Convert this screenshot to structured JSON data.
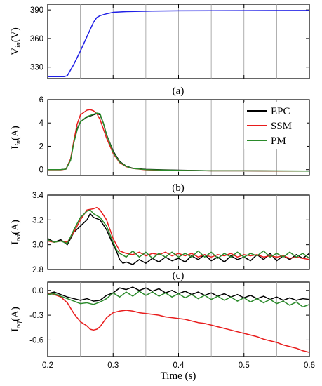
{
  "chart_data": [
    {
      "type": "line",
      "panel_label": "(a)",
      "ylabel_main": "V",
      "ylabel_sub": "in",
      "ylabel_unit": "(V)",
      "xlim": [
        0.2,
        0.6
      ],
      "ylim": [
        318,
        396
      ],
      "yticks": [
        330,
        360,
        390
      ],
      "xticks": [
        0.2,
        0.3,
        0.4,
        0.5,
        0.6
      ],
      "grid": true,
      "series": [
        {
          "color": "#1f1fe6",
          "x": [
            0.2,
            0.225,
            0.23,
            0.24,
            0.25,
            0.26,
            0.27,
            0.275,
            0.28,
            0.29,
            0.3,
            0.32,
            0.36,
            0.4,
            0.5,
            0.6
          ],
          "y": [
            320,
            320,
            321,
            333,
            347,
            362,
            377,
            382,
            384,
            386,
            387.5,
            388.3,
            388.8,
            389.1,
            389.3,
            389.5
          ]
        }
      ]
    },
    {
      "type": "line",
      "panel_label": "(b)",
      "ylabel_main": "I",
      "ylabel_sub": "in",
      "ylabel_unit": "(A)",
      "xlim": [
        0.2,
        0.6
      ],
      "ylim": [
        -0.5,
        6
      ],
      "yticks": [
        0,
        2,
        4,
        6
      ],
      "xticks": [
        0.2,
        0.3,
        0.4,
        0.5,
        0.6
      ],
      "grid": true,
      "legend_position": "top-right",
      "series": [
        {
          "name": "EPC",
          "color": "#000000",
          "x": [
            0.2,
            0.22,
            0.228,
            0.235,
            0.24,
            0.245,
            0.25,
            0.26,
            0.27,
            0.275,
            0.28,
            0.285,
            0.29,
            0.3,
            0.31,
            0.32,
            0.33,
            0.35,
            0.4,
            0.45,
            0.5,
            0.55,
            0.6
          ],
          "y": [
            0.0,
            0.0,
            0.05,
            0.9,
            2.4,
            3.5,
            4.1,
            4.5,
            4.7,
            4.8,
            4.7,
            4.0,
            3.0,
            1.6,
            0.7,
            0.3,
            0.12,
            0.02,
            -0.05,
            -0.1,
            -0.1,
            -0.12,
            -0.12
          ]
        },
        {
          "name": "SSM",
          "color": "#e81c1c",
          "x": [
            0.2,
            0.22,
            0.228,
            0.235,
            0.24,
            0.245,
            0.25,
            0.26,
            0.265,
            0.27,
            0.275,
            0.28,
            0.285,
            0.29,
            0.3,
            0.31,
            0.32,
            0.33,
            0.35,
            0.4,
            0.45,
            0.5,
            0.55,
            0.6
          ],
          "y": [
            -0.02,
            -0.02,
            0.05,
            0.9,
            2.5,
            3.9,
            4.7,
            5.1,
            5.15,
            5.05,
            4.8,
            4.3,
            3.5,
            2.7,
            1.4,
            0.6,
            0.25,
            0.1,
            -0.02,
            -0.08,
            -0.1,
            -0.1,
            -0.12,
            -0.12
          ]
        },
        {
          "name": "PM",
          "color": "#2a8a2a",
          "x": [
            0.2,
            0.22,
            0.228,
            0.235,
            0.24,
            0.245,
            0.25,
            0.26,
            0.27,
            0.275,
            0.28,
            0.285,
            0.29,
            0.3,
            0.31,
            0.32,
            0.33,
            0.35,
            0.4,
            0.45,
            0.5,
            0.55,
            0.6
          ],
          "y": [
            0.0,
            0.0,
            0.05,
            0.8,
            2.3,
            3.4,
            4.1,
            4.55,
            4.75,
            4.85,
            4.8,
            4.0,
            3.0,
            1.5,
            0.65,
            0.28,
            0.1,
            0.0,
            -0.06,
            -0.1,
            -0.1,
            -0.11,
            -0.12
          ]
        }
      ]
    },
    {
      "type": "line",
      "panel_label": "(c)",
      "ylabel_main": "I",
      "ylabel_sub": "od",
      "ylabel_unit": "(A)",
      "xlim": [
        0.2,
        0.6
      ],
      "ylim": [
        2.8,
        3.4
      ],
      "yticks": [
        2.8,
        3.0,
        3.2,
        3.4
      ],
      "xticks": [
        0.2,
        0.3,
        0.4,
        0.5,
        0.6
      ],
      "grid": true,
      "series": [
        {
          "name": "EPC",
          "color": "#000000",
          "x": [
            0.2,
            0.21,
            0.22,
            0.23,
            0.24,
            0.25,
            0.26,
            0.265,
            0.27,
            0.28,
            0.29,
            0.3,
            0.305,
            0.31,
            0.315,
            0.32,
            0.33,
            0.34,
            0.35,
            0.36,
            0.37,
            0.38,
            0.39,
            0.4,
            0.41,
            0.42,
            0.43,
            0.44,
            0.45,
            0.46,
            0.47,
            0.48,
            0.49,
            0.5,
            0.51,
            0.52,
            0.53,
            0.54,
            0.55,
            0.56,
            0.57,
            0.58,
            0.59,
            0.6
          ],
          "y": [
            3.05,
            3.02,
            3.04,
            3.0,
            3.1,
            3.15,
            3.2,
            3.25,
            3.22,
            3.2,
            3.12,
            3.0,
            2.95,
            2.88,
            2.85,
            2.86,
            2.84,
            2.88,
            2.85,
            2.89,
            2.86,
            2.9,
            2.87,
            2.89,
            2.86,
            2.91,
            2.88,
            2.92,
            2.87,
            2.9,
            2.86,
            2.91,
            2.88,
            2.9,
            2.87,
            2.92,
            2.88,
            2.93,
            2.87,
            2.91,
            2.88,
            2.92,
            2.89,
            2.93
          ]
        },
        {
          "name": "SSM",
          "color": "#e81c1c",
          "x": [
            0.2,
            0.21,
            0.22,
            0.23,
            0.24,
            0.25,
            0.26,
            0.27,
            0.275,
            0.28,
            0.29,
            0.3,
            0.305,
            0.31,
            0.32,
            0.33,
            0.34,
            0.35,
            0.36,
            0.37,
            0.38,
            0.39,
            0.4,
            0.41,
            0.42,
            0.43,
            0.44,
            0.45,
            0.46,
            0.47,
            0.48,
            0.49,
            0.5,
            0.51,
            0.52,
            0.53,
            0.54,
            0.55,
            0.56,
            0.57,
            0.58,
            0.59,
            0.6
          ],
          "y": [
            3.03,
            3.02,
            3.03,
            3.02,
            3.1,
            3.2,
            3.28,
            3.29,
            3.3,
            3.28,
            3.2,
            3.05,
            3.0,
            2.95,
            2.93,
            2.92,
            2.94,
            2.91,
            2.93,
            2.92,
            2.94,
            2.91,
            2.93,
            2.91,
            2.93,
            2.9,
            2.92,
            2.9,
            2.92,
            2.91,
            2.93,
            2.9,
            2.92,
            2.91,
            2.92,
            2.9,
            2.91,
            2.9,
            2.91,
            2.89,
            2.9,
            2.89,
            2.88
          ]
        },
        {
          "name": "PM",
          "color": "#2a8a2a",
          "x": [
            0.2,
            0.21,
            0.22,
            0.23,
            0.24,
            0.25,
            0.26,
            0.265,
            0.27,
            0.28,
            0.29,
            0.3,
            0.305,
            0.31,
            0.32,
            0.33,
            0.34,
            0.35,
            0.36,
            0.37,
            0.38,
            0.39,
            0.4,
            0.41,
            0.42,
            0.43,
            0.44,
            0.45,
            0.46,
            0.47,
            0.48,
            0.49,
            0.5,
            0.51,
            0.52,
            0.53,
            0.54,
            0.55,
            0.56,
            0.57,
            0.58,
            0.59,
            0.6
          ],
          "y": [
            3.04,
            3.02,
            3.03,
            3.01,
            3.12,
            3.22,
            3.27,
            3.28,
            3.25,
            3.22,
            3.15,
            3.02,
            2.96,
            2.93,
            2.9,
            2.95,
            2.9,
            2.94,
            2.89,
            2.93,
            2.9,
            2.94,
            2.9,
            2.93,
            2.9,
            2.95,
            2.9,
            2.94,
            2.89,
            2.93,
            2.9,
            2.94,
            2.9,
            2.93,
            2.91,
            2.95,
            2.9,
            2.93,
            2.9,
            2.94,
            2.9,
            2.93,
            2.89
          ]
        }
      ]
    },
    {
      "type": "line",
      "panel_label": "",
      "ylabel_main": "I",
      "ylabel_sub": "oq",
      "ylabel_unit": "(A)",
      "xlabel": "Time (s)",
      "xlim": [
        0.2,
        0.6
      ],
      "ylim": [
        -0.8,
        0.1
      ],
      "yticks": [
        0.0,
        -0.3,
        -0.6
      ],
      "ytick_labels": [
        "0.0",
        "-0.3",
        "-0.6"
      ],
      "xticks": [
        0.2,
        0.3,
        0.4,
        0.5,
        0.6
      ],
      "xtick_labels": [
        "0.2",
        "0.3",
        "0.4",
        "0.5",
        "0.6"
      ],
      "grid": true,
      "series": [
        {
          "name": "EPC",
          "color": "#000000",
          "x": [
            0.2,
            0.21,
            0.22,
            0.23,
            0.24,
            0.25,
            0.26,
            0.27,
            0.28,
            0.29,
            0.3,
            0.31,
            0.32,
            0.33,
            0.34,
            0.35,
            0.36,
            0.37,
            0.38,
            0.39,
            0.4,
            0.41,
            0.42,
            0.43,
            0.44,
            0.45,
            0.46,
            0.47,
            0.48,
            0.49,
            0.5,
            0.51,
            0.52,
            0.53,
            0.54,
            0.55,
            0.56,
            0.57,
            0.58,
            0.59,
            0.6
          ],
          "y": [
            -0.04,
            -0.02,
            -0.05,
            -0.08,
            -0.1,
            -0.12,
            -0.1,
            -0.13,
            -0.12,
            -0.06,
            -0.03,
            0.03,
            0.01,
            0.04,
            0.0,
            0.03,
            -0.01,
            0.02,
            -0.03,
            0.0,
            -0.04,
            -0.01,
            -0.05,
            -0.02,
            -0.06,
            -0.03,
            -0.07,
            -0.04,
            -0.08,
            -0.05,
            -0.09,
            -0.06,
            -0.1,
            -0.07,
            -0.11,
            -0.08,
            -0.12,
            -0.09,
            -0.12,
            -0.1,
            -0.11
          ]
        },
        {
          "name": "SSM",
          "color": "#e81c1c",
          "x": [
            0.2,
            0.21,
            0.22,
            0.23,
            0.24,
            0.25,
            0.26,
            0.265,
            0.27,
            0.275,
            0.28,
            0.29,
            0.3,
            0.31,
            0.32,
            0.33,
            0.34,
            0.35,
            0.36,
            0.37,
            0.38,
            0.39,
            0.4,
            0.41,
            0.42,
            0.43,
            0.44,
            0.45,
            0.46,
            0.47,
            0.48,
            0.49,
            0.5,
            0.51,
            0.52,
            0.53,
            0.54,
            0.55,
            0.56,
            0.57,
            0.58,
            0.59,
            0.6
          ],
          "y": [
            -0.03,
            -0.05,
            -0.08,
            -0.15,
            -0.28,
            -0.38,
            -0.43,
            -0.47,
            -0.48,
            -0.47,
            -0.44,
            -0.33,
            -0.27,
            -0.25,
            -0.24,
            -0.25,
            -0.27,
            -0.28,
            -0.29,
            -0.3,
            -0.32,
            -0.33,
            -0.34,
            -0.35,
            -0.37,
            -0.39,
            -0.4,
            -0.42,
            -0.44,
            -0.46,
            -0.48,
            -0.5,
            -0.52,
            -0.54,
            -0.56,
            -0.59,
            -0.61,
            -0.63,
            -0.66,
            -0.68,
            -0.7,
            -0.73,
            -0.75
          ]
        },
        {
          "name": "PM",
          "color": "#2a8a2a",
          "x": [
            0.2,
            0.21,
            0.22,
            0.23,
            0.24,
            0.25,
            0.26,
            0.27,
            0.28,
            0.29,
            0.3,
            0.31,
            0.32,
            0.33,
            0.34,
            0.35,
            0.36,
            0.37,
            0.38,
            0.39,
            0.4,
            0.41,
            0.42,
            0.43,
            0.44,
            0.45,
            0.46,
            0.47,
            0.48,
            0.49,
            0.5,
            0.51,
            0.52,
            0.53,
            0.54,
            0.55,
            0.56,
            0.57,
            0.58,
            0.59,
            0.6
          ],
          "y": [
            -0.05,
            -0.04,
            -0.07,
            -0.1,
            -0.13,
            -0.16,
            -0.15,
            -0.17,
            -0.14,
            -0.1,
            -0.03,
            -0.08,
            -0.02,
            -0.07,
            -0.01,
            -0.06,
            -0.02,
            -0.07,
            -0.03,
            -0.08,
            -0.04,
            -0.09,
            -0.05,
            -0.1,
            -0.06,
            -0.11,
            -0.07,
            -0.12,
            -0.08,
            -0.13,
            -0.09,
            -0.14,
            -0.1,
            -0.15,
            -0.11,
            -0.16,
            -0.13,
            -0.18,
            -0.14,
            -0.2,
            -0.17
          ]
        }
      ]
    }
  ],
  "legend": {
    "entries": [
      {
        "label": "EPC",
        "color": "#000000"
      },
      {
        "label": "SSM",
        "color": "#e81c1c"
      },
      {
        "label": "PM",
        "color": "#2a8a2a"
      }
    ]
  }
}
